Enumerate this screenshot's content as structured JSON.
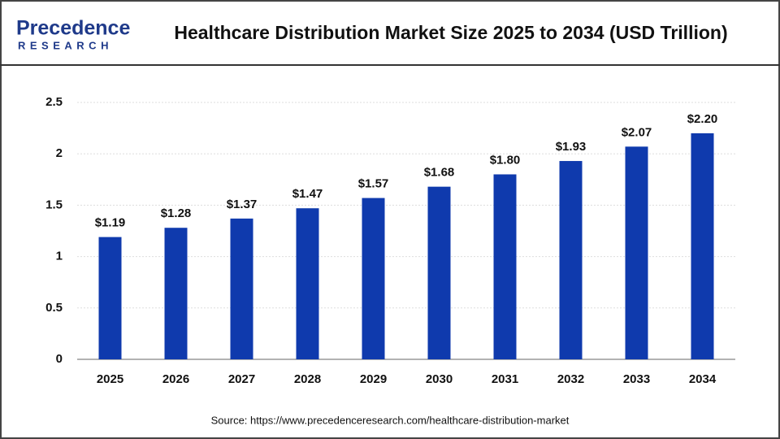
{
  "logo": {
    "name": "Precedence",
    "sub": "RESEARCH"
  },
  "chart_data": {
    "type": "bar",
    "title": "Healthcare Distribution Market Size 2025 to 2034 (USD Trillion)",
    "categories": [
      "2025",
      "2026",
      "2027",
      "2028",
      "2029",
      "2030",
      "2031",
      "2032",
      "2033",
      "2034"
    ],
    "values": [
      1.19,
      1.28,
      1.37,
      1.47,
      1.57,
      1.68,
      1.8,
      1.93,
      2.07,
      2.2
    ],
    "value_labels": [
      "$1.19",
      "$1.28",
      "$1.37",
      "$1.47",
      "$1.57",
      "$1.68",
      "$1.80",
      "$1.93",
      "$2.07",
      "$2.20"
    ],
    "color": "#0f3aad",
    "ylim": [
      0,
      2.5
    ],
    "yticks": [
      0,
      0.5,
      1,
      1.5,
      2,
      2.5
    ],
    "grid": true,
    "source": "Source: https://www.precedenceresearch.com/healthcare-distribution-market"
  }
}
